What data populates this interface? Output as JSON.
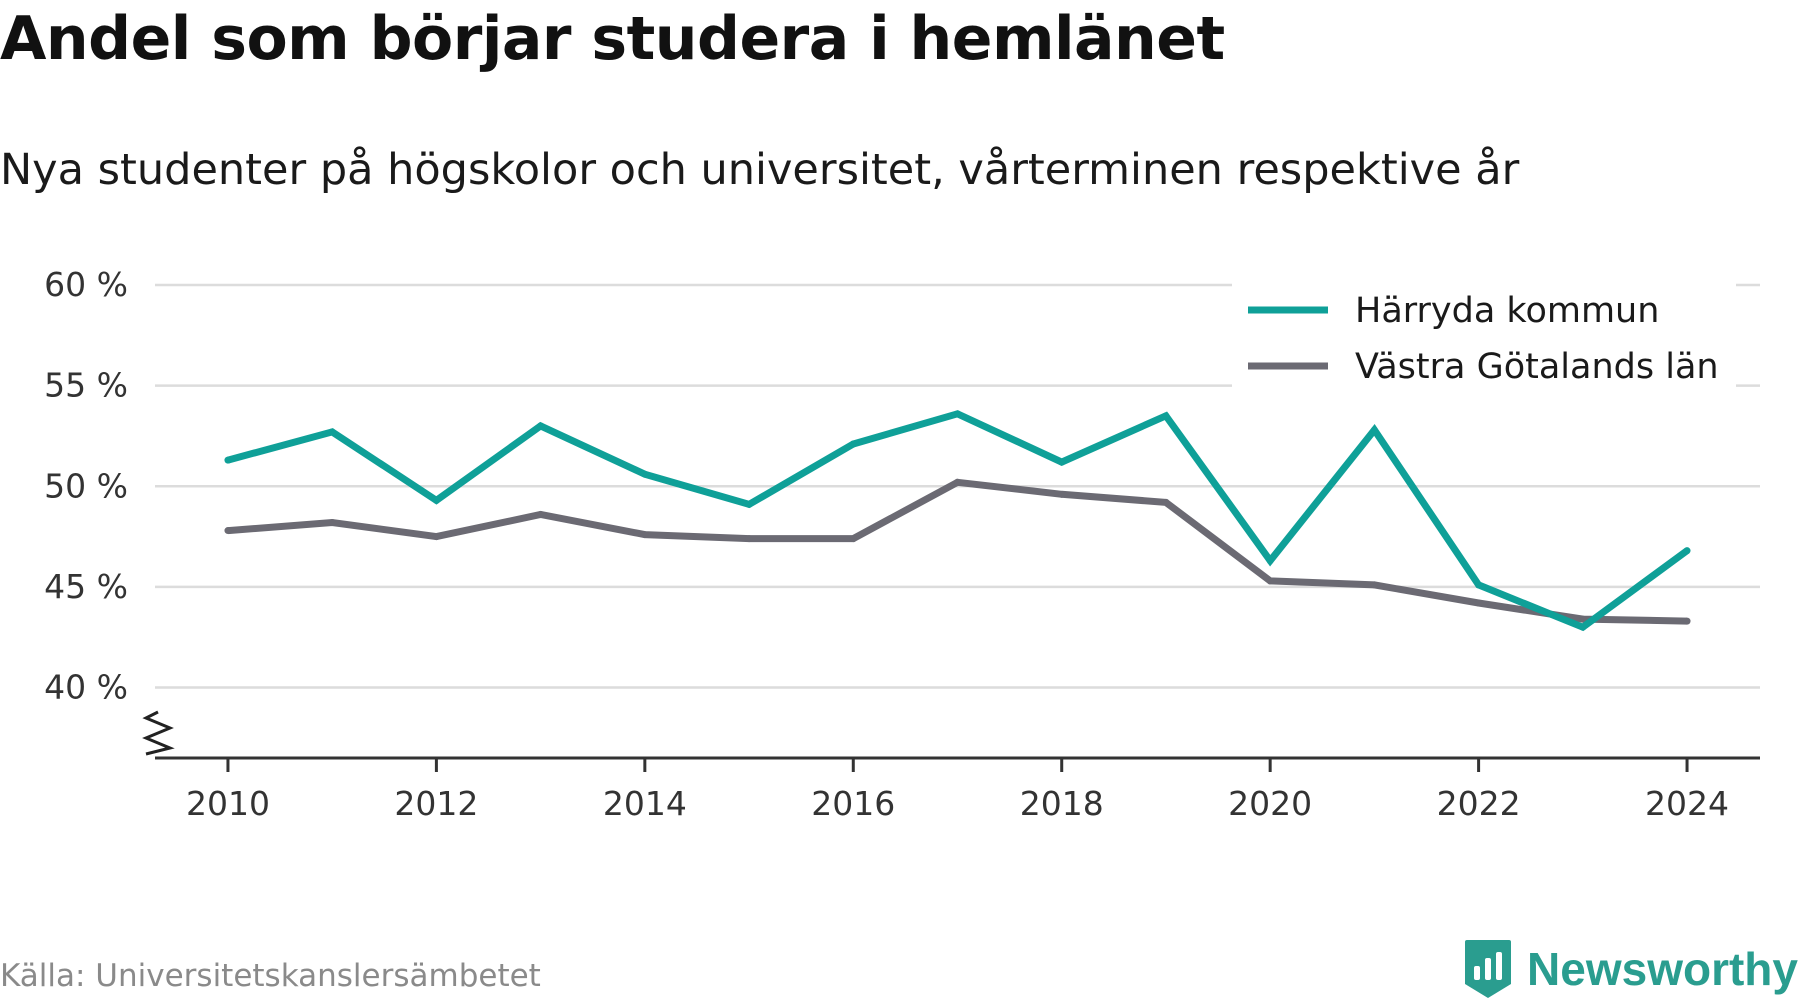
{
  "title": "Andel som börjar studera i hemlänet",
  "subtitle": "Nya studenter på högskolor och universitet, vårterminen respektive år",
  "source": "Källa: Universitetskanslersämbetet",
  "brand": {
    "name": "Newsworthy",
    "icon": "newsworthy-logo-icon",
    "color": "#2a9d8f"
  },
  "chart_data": {
    "type": "line",
    "x": [
      2010,
      2011,
      2012,
      2013,
      2014,
      2015,
      2016,
      2017,
      2018,
      2019,
      2020,
      2021,
      2022,
      2023,
      2024
    ],
    "x_ticks": [
      2010,
      2012,
      2014,
      2016,
      2018,
      2020,
      2022,
      2024
    ],
    "x_tick_labels": [
      "2010",
      "2012",
      "2014",
      "2016",
      "2018",
      "2020",
      "2022",
      "2024"
    ],
    "y_ticks": [
      40,
      45,
      50,
      55,
      60
    ],
    "y_tick_labels": [
      "40 %",
      "45 %",
      "50 %",
      "55 %",
      "60 %"
    ],
    "ylim": [
      36.5,
      60
    ],
    "xlim": [
      2009.3,
      2024.7
    ],
    "y_axis_break": true,
    "grid": true,
    "legend_position": "top-right",
    "series": [
      {
        "name": "Härryda kommun",
        "color": "#0fa098",
        "values": [
          51.3,
          52.7,
          49.3,
          53.0,
          50.6,
          49.1,
          52.1,
          53.6,
          51.2,
          53.5,
          46.3,
          52.8,
          45.1,
          43.0,
          46.8
        ]
      },
      {
        "name": "Västra Götalands län",
        "color": "#6b6a73",
        "values": [
          47.8,
          48.2,
          47.5,
          48.6,
          47.6,
          47.4,
          47.4,
          50.2,
          49.6,
          49.2,
          45.3,
          45.1,
          44.2,
          43.4,
          43.3
        ]
      }
    ]
  }
}
